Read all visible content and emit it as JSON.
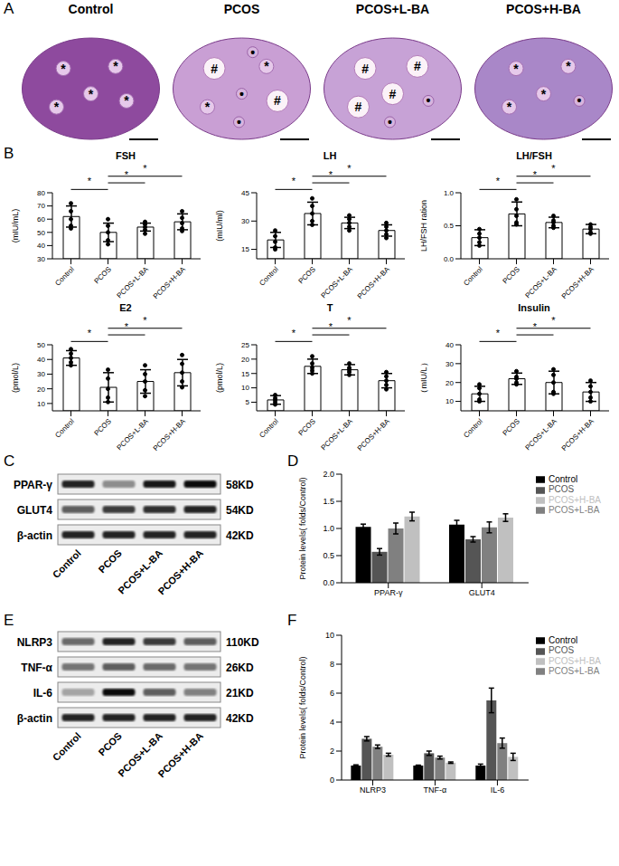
{
  "figure": {
    "panel_labels": [
      "A",
      "B",
      "C",
      "D",
      "E",
      "F"
    ],
    "histology": [
      {
        "title": "Control",
        "color": "#8e4a9e",
        "marks": [
          "*",
          "*",
          "*",
          "*",
          "*"
        ]
      },
      {
        "title": "PCOS",
        "color": "#c99fd4",
        "marks": [
          "#",
          "*",
          "•",
          "*",
          "#",
          "•",
          "•"
        ]
      },
      {
        "title": "PCOS+L-BA",
        "color": "#c7a2d6",
        "marks": [
          "#",
          "#",
          "#",
          "#",
          "•",
          "•"
        ]
      },
      {
        "title": "PCOS+H-BA",
        "color": "#a987c8",
        "marks": [
          "*",
          "*",
          "*",
          "*",
          "•"
        ]
      }
    ],
    "blots": [
      {
        "lanes": [
          "Control",
          "PCOS",
          "PCOS+L-BA",
          "PCOS+H-BA"
        ],
        "rows": [
          {
            "name": "PPAR-γ",
            "size": "58KD",
            "intensity": [
              0.85,
              0.4,
              0.9,
              0.95
            ]
          },
          {
            "name": "GLUT4",
            "size": "54KD",
            "intensity": [
              0.6,
              0.75,
              0.8,
              0.85
            ]
          },
          {
            "name": "β-actin",
            "size": "42KD",
            "intensity": [
              0.85,
              0.85,
              0.85,
              0.85
            ]
          }
        ]
      },
      {
        "lanes": [
          "Control",
          "PCOS",
          "PCOS+L-BA",
          "PCOS+H-BA"
        ],
        "rows": [
          {
            "name": "NLRP3",
            "size": "110KD",
            "intensity": [
              0.55,
              0.85,
              0.75,
              0.6
            ]
          },
          {
            "name": "TNF-α",
            "size": "26KD",
            "intensity": [
              0.5,
              0.6,
              0.55,
              0.5
            ]
          },
          {
            "name": "IL-6",
            "size": "21KD",
            "intensity": [
              0.3,
              0.95,
              0.6,
              0.45
            ]
          },
          {
            "name": "β-actin",
            "size": "42KD",
            "intensity": [
              0.85,
              0.85,
              0.85,
              0.85
            ]
          }
        ]
      }
    ]
  },
  "chart_data": [
    {
      "type": "bar",
      "title": "FSH",
      "y_label": "(mIU/mL)",
      "color": "#ffffff",
      "categories": [
        "Control",
        "PCOS",
        "PCOS+L-BA",
        "PCOS+H-BA"
      ],
      "values": [
        62,
        50,
        54,
        58
      ],
      "errors": [
        8,
        7,
        3,
        6
      ],
      "points": [
        [
          72,
          66,
          60,
          55,
          53
        ],
        [
          60,
          55,
          50,
          44,
          41
        ],
        [
          58,
          56,
          54,
          52,
          49
        ],
        [
          66,
          61,
          57,
          53,
          51
        ]
      ],
      "ylim": [
        30,
        80
      ],
      "yticks": [
        30,
        40,
        50,
        60,
        70,
        80
      ],
      "comparisons": [
        {
          "pair": [
            0,
            1
          ],
          "label": "*"
        },
        {
          "pair": [
            1,
            2
          ],
          "label": "*"
        },
        {
          "pair": [
            1,
            3
          ],
          "label": "*"
        }
      ]
    },
    {
      "type": "bar",
      "title": "LH",
      "y_label": "(mIU/ml)",
      "color": "#ffffff",
      "categories": [
        "Control",
        "PCOS",
        "PCOS+L-BA",
        "PCOS+H-BA"
      ],
      "values": [
        20,
        34,
        29,
        25
      ],
      "errors": [
        4,
        6,
        3,
        3
      ],
      "points": [
        [
          25,
          22,
          19,
          16,
          15
        ],
        [
          42,
          38,
          34,
          30,
          28
        ],
        [
          33,
          31,
          29,
          27,
          25
        ],
        [
          29,
          27,
          25,
          23,
          21
        ]
      ],
      "ylim": [
        10,
        45
      ],
      "yticks": [
        15,
        30,
        45
      ],
      "comparisons": [
        {
          "pair": [
            0,
            1
          ],
          "label": "*"
        },
        {
          "pair": [
            1,
            2
          ],
          "label": "*"
        },
        {
          "pair": [
            1,
            3
          ],
          "label": "*"
        }
      ]
    },
    {
      "type": "bar",
      "title": "LH/FSH",
      "y_label": "LH/FSH ration",
      "color": "#ffffff",
      "categories": [
        "Control",
        "PCOS",
        "PCOS+L-BA",
        "PCOS+H-BA"
      ],
      "values": [
        0.32,
        0.68,
        0.55,
        0.45
      ],
      "errors": [
        0.12,
        0.18,
        0.08,
        0.07
      ],
      "points": [
        [
          0.45,
          0.38,
          0.32,
          0.25,
          0.2
        ],
        [
          0.9,
          0.75,
          0.65,
          0.55,
          0.52
        ],
        [
          0.65,
          0.58,
          0.55,
          0.5,
          0.47
        ],
        [
          0.52,
          0.48,
          0.45,
          0.4,
          0.38
        ]
      ],
      "ylim": [
        0,
        1.0
      ],
      "yticks": [
        {
          "value": 0,
          "label": "0.0"
        },
        {
          "value": 0.5,
          "label": "0.5"
        },
        {
          "value": 1,
          "label": "1.0"
        }
      ],
      "comparisons": [
        {
          "pair": [
            0,
            1
          ],
          "label": "*"
        },
        {
          "pair": [
            1,
            2
          ],
          "label": "*"
        },
        {
          "pair": [
            1,
            3
          ],
          "label": "*"
        }
      ]
    },
    {
      "type": "bar",
      "title": "E2",
      "y_label": "(pmol/L)",
      "color": "#ffffff",
      "categories": [
        "Control",
        "PCOS",
        "PCOS+L-BA",
        "PCOS+H-BA"
      ],
      "values": [
        41,
        21,
        25,
        31
      ],
      "errors": [
        5,
        10,
        8,
        9
      ],
      "points": [
        [
          47,
          44,
          41,
          38,
          36
        ],
        [
          33,
          27,
          20,
          14,
          11
        ],
        [
          36,
          30,
          25,
          19,
          15
        ],
        [
          43,
          37,
          31,
          25,
          21
        ]
      ],
      "ylim": [
        5,
        50
      ],
      "yticks": [
        10,
        20,
        30,
        40,
        50
      ],
      "comparisons": [
        {
          "pair": [
            0,
            1
          ],
          "label": "*"
        },
        {
          "pair": [
            1,
            2
          ],
          "label": "*"
        },
        {
          "pair": [
            1,
            3
          ],
          "label": "*"
        }
      ]
    },
    {
      "type": "bar",
      "title": "T",
      "y_label": "(pmol/L)",
      "color": "#ffffff",
      "categories": [
        "Control",
        "PCOS",
        "PCOS+L-BA",
        "PCOS+H-BA"
      ],
      "values": [
        5.8,
        17.5,
        16.3,
        12.5
      ],
      "errors": [
        1.5,
        2.5,
        1.8,
        2.5
      ],
      "points": [
        [
          7.5,
          6.5,
          5.8,
          5,
          4.2
        ],
        [
          21,
          18.5,
          17,
          16,
          15
        ],
        [
          18.5,
          17,
          16.3,
          15.5,
          14.5
        ],
        [
          15.5,
          14,
          12.5,
          11,
          9.5
        ]
      ],
      "ylim": [
        2,
        25
      ],
      "yticks": [
        5,
        10,
        15,
        20,
        25
      ],
      "comparisons": [
        {
          "pair": [
            0,
            1
          ],
          "label": "*"
        },
        {
          "pair": [
            1,
            2
          ],
          "label": "*"
        },
        {
          "pair": [
            1,
            3
          ],
          "label": "*"
        }
      ]
    },
    {
      "type": "bar",
      "title": "Insulin",
      "y_label": "（mIU/L）",
      "color": "#ffffff",
      "categories": [
        "Control",
        "PCOS",
        "PCOS+L-BA",
        "PCOS+H-BA"
      ],
      "values": [
        14,
        22,
        20,
        15
      ],
      "errors": [
        4,
        3,
        6,
        5
      ],
      "points": [
        [
          19,
          17,
          14,
          11,
          10
        ],
        [
          26,
          23,
          22,
          20,
          19
        ],
        [
          27,
          24,
          20,
          15,
          14
        ],
        [
          21,
          18,
          15,
          12,
          10
        ]
      ],
      "ylim": [
        5,
        40
      ],
      "yticks": [
        10,
        20,
        30,
        40
      ],
      "comparisons": [
        {
          "pair": [
            0,
            1
          ],
          "label": "*"
        },
        {
          "pair": [
            1,
            2
          ],
          "label": "*"
        },
        {
          "pair": [
            1,
            3
          ],
          "label": "*"
        }
      ]
    },
    {
      "type": "bar",
      "y_label": "Protein levels( folds/Control)",
      "legend": "right",
      "categories": [
        "PPAR-γ",
        "GLUT4"
      ],
      "series": [
        {
          "name": "Control",
          "color": "#000000",
          "values": [
            1.03,
            1.07
          ],
          "errors": [
            0.05,
            0.08
          ]
        },
        {
          "name": "PCOS",
          "color": "#555555",
          "values": [
            0.57,
            0.8
          ],
          "errors": [
            0.06,
            0.05
          ]
        },
        {
          "name": "PCOS+L-BA",
          "color": "#808080",
          "values": [
            1.0,
            1.02
          ],
          "errors": [
            0.1,
            0.1
          ]
        },
        {
          "name": "PCOS+H-BA",
          "color": "#c0c0c0",
          "values": [
            1.22,
            1.2
          ],
          "errors": [
            0.08,
            0.07
          ]
        }
      ],
      "ylim": [
        0,
        2
      ],
      "yticks": [
        {
          "value": 0,
          "label": "0.0"
        },
        {
          "value": 0.5,
          "label": "0.5"
        },
        {
          "value": 1,
          "label": "1.0"
        },
        {
          "value": 1.5,
          "label": "1.5"
        },
        {
          "value": 2,
          "label": "2.0"
        }
      ]
    },
    {
      "type": "bar",
      "y_label": "Protein levels( folds/Control)",
      "legend": "right",
      "categories": [
        "NLRP3",
        "TNF-α",
        "IL-6"
      ],
      "series": [
        {
          "name": "Control",
          "color": "#000000",
          "values": [
            1.0,
            1.0,
            1.0
          ],
          "errors": [
            0.05,
            0.03,
            0.1
          ]
        },
        {
          "name": "PCOS",
          "color": "#555555",
          "values": [
            2.85,
            1.85,
            5.5
          ],
          "errors": [
            0.15,
            0.15,
            0.85
          ]
        },
        {
          "name": "PCOS+L-BA",
          "color": "#808080",
          "values": [
            2.3,
            1.55,
            2.55
          ],
          "errors": [
            0.12,
            0.1,
            0.35
          ]
        },
        {
          "name": "PCOS+H-BA",
          "color": "#c0c0c0",
          "values": [
            1.75,
            1.2,
            1.6
          ],
          "errors": [
            0.1,
            0.05,
            0.25
          ]
        }
      ],
      "ylim": [
        0,
        10
      ],
      "yticks": [
        0,
        2,
        4,
        6,
        8,
        10
      ]
    }
  ]
}
